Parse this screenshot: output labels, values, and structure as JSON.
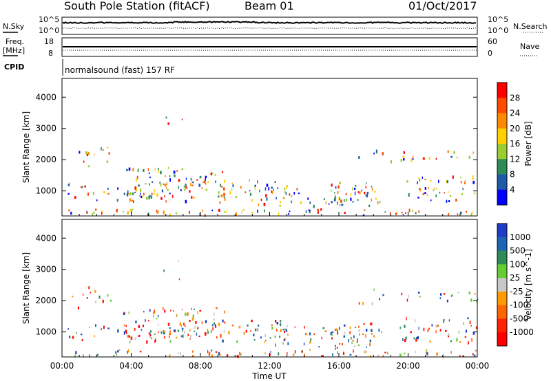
{
  "header": {
    "station": "South Pole Station (fitACF)",
    "beam": "Beam 01",
    "date": "01/Oct/2017"
  },
  "top_panels": {
    "sky_label": "N.Sky",
    "search_label": "N.Search",
    "sky_ticks": [
      "10^5",
      "10^0"
    ],
    "sky_right_ticks": [
      "10^5",
      "10^0"
    ],
    "freq_label_1": "Freq.",
    "freq_label_2": "[MHz]",
    "freq_ticks": [
      "18",
      "8"
    ],
    "nave_label": "Nave",
    "nave_ticks": [
      "60",
      "0"
    ],
    "cpid_label": "CPID",
    "cpid_text": "normalsound (fast) 157 RF"
  },
  "chart_data": [
    {
      "type": "heatmap",
      "name": "power-panel",
      "ylabel": "Slant Range [km]",
      "ylim": [
        200,
        4600
      ],
      "y_ticks": [
        "4000",
        "3000",
        "2000",
        "1000"
      ],
      "x_ticks": [
        "00:00",
        "04:00",
        "08:00",
        "12:00",
        "16:00",
        "20:00",
        "00:00"
      ],
      "xlim_hours": [
        0,
        24
      ],
      "colorbar": {
        "label": "Power [dB]",
        "tick_labels": [
          "28",
          "24",
          "20",
          "16",
          "12",
          "8",
          "4"
        ],
        "colors": [
          "#ff0000",
          "#ff4a00",
          "#ff8a00",
          "#ffd000",
          "#9acd32",
          "#2e8b57",
          "#1e5aa8",
          "#0000ff"
        ]
      }
    },
    {
      "type": "heatmap",
      "name": "velocity-panel",
      "ylabel": "Slant Range [km]",
      "ylim": [
        200,
        4600
      ],
      "y_ticks": [
        "4000",
        "3000",
        "2000",
        "1000"
      ],
      "x_ticks": [
        "00:00",
        "04:00",
        "08:00",
        "12:00",
        "16:00",
        "20:00",
        "00:00"
      ],
      "xlabel": "Time UT",
      "xlim_hours": [
        0,
        24
      ],
      "colorbar": {
        "label": "Velocity [m s^-1]",
        "tick_labels": [
          "1000",
          "500",
          "100",
          "25",
          "-25",
          "-100",
          "-500",
          "-1000"
        ],
        "colors": [
          "#1e3cc8",
          "#1e64b4",
          "#2e8b57",
          "#66cc33",
          "#c8c8c8",
          "#ff9900",
          "#ff6600",
          "#ff2200",
          "#ff0000"
        ]
      }
    }
  ]
}
